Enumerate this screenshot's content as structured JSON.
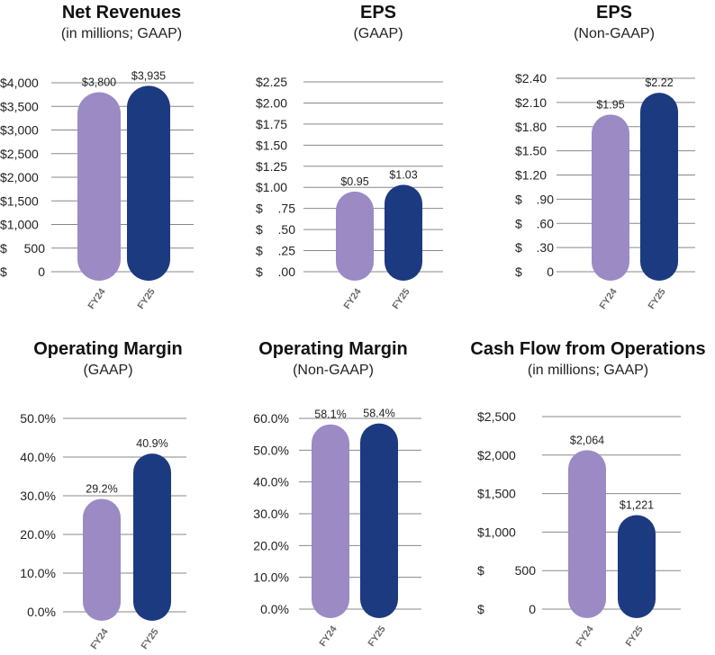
{
  "colors": {
    "fy24": "#9b8ac4",
    "fy25": "#1c3a80",
    "grid": "#888888"
  },
  "chart_data": [
    {
      "type": "bar",
      "title": "Net Revenues",
      "subtitle": "(in millions; GAAP)",
      "categories": [
        "FY24",
        "FY25"
      ],
      "values": [
        3800,
        3935
      ],
      "value_labels": [
        "$3,800",
        "$3,935"
      ],
      "ylim": [
        0,
        4000
      ],
      "ticks": [
        {
          "v": 0,
          "l1": "$",
          "l2": "0"
        },
        {
          "v": 500,
          "l1": "$",
          "l2": "500"
        },
        {
          "v": 1000,
          "l1": "$1,000",
          "l2": ""
        },
        {
          "v": 1500,
          "l1": "$1,500",
          "l2": ""
        },
        {
          "v": 2000,
          "l1": "$2,000",
          "l2": ""
        },
        {
          "v": 2500,
          "l1": "$2,500",
          "l2": ""
        },
        {
          "v": 3000,
          "l1": "$3,000",
          "l2": ""
        },
        {
          "v": 3500,
          "l1": "$3,500",
          "l2": ""
        },
        {
          "v": 4000,
          "l1": "$4,000",
          "l2": ""
        }
      ]
    },
    {
      "type": "bar",
      "title": "EPS",
      "subtitle": "(GAAP)",
      "categories": [
        "FY24",
        "FY25"
      ],
      "values": [
        0.95,
        1.03
      ],
      "value_labels": [
        "$0.95",
        "$1.03"
      ],
      "ylim": [
        0,
        2.25
      ],
      "ticks": [
        {
          "v": 0,
          "l1": "$",
          "l2": ".00"
        },
        {
          "v": 0.25,
          "l1": "$",
          "l2": ".25"
        },
        {
          "v": 0.5,
          "l1": "$",
          "l2": ".50"
        },
        {
          "v": 0.75,
          "l1": "$",
          "l2": ".75"
        },
        {
          "v": 1.0,
          "l1": "$1.00",
          "l2": ""
        },
        {
          "v": 1.25,
          "l1": "$1.25",
          "l2": ""
        },
        {
          "v": 1.5,
          "l1": "$1.50",
          "l2": ""
        },
        {
          "v": 1.75,
          "l1": "$1.75",
          "l2": ""
        },
        {
          "v": 2.0,
          "l1": "$2.00",
          "l2": ""
        },
        {
          "v": 2.25,
          "l1": "$2.25",
          "l2": ""
        }
      ]
    },
    {
      "type": "bar",
      "title": "EPS",
      "subtitle": "(Non-GAAP)",
      "categories": [
        "FY24",
        "FY25"
      ],
      "values": [
        1.95,
        2.22
      ],
      "value_labels": [
        "$1.95",
        "$2.22"
      ],
      "ylim": [
        0,
        2.4
      ],
      "ticks": [
        {
          "v": 0,
          "l1": "$",
          "l2": "0"
        },
        {
          "v": 0.3,
          "l1": "$",
          "l2": ".30"
        },
        {
          "v": 0.6,
          "l1": "$",
          "l2": ".60"
        },
        {
          "v": 0.9,
          "l1": "$",
          "l2": ".90"
        },
        {
          "v": 1.2,
          "l1": "$1.20",
          "l2": ""
        },
        {
          "v": 1.5,
          "l1": "$1.50",
          "l2": ""
        },
        {
          "v": 1.8,
          "l1": "$1.80",
          "l2": ""
        },
        {
          "v": 2.1,
          "l1": "$2.10",
          "l2": ""
        },
        {
          "v": 2.4,
          "l1": "$2.40",
          "l2": ""
        }
      ]
    },
    {
      "type": "bar",
      "title": "Operating Margin",
      "subtitle": "(GAAP)",
      "categories": [
        "FY24",
        "FY25"
      ],
      "values": [
        29.2,
        40.9
      ],
      "value_labels": [
        "29.2%",
        "40.9%"
      ],
      "ylim": [
        0,
        50
      ],
      "ticks": [
        {
          "v": 0,
          "l1": "0.0%",
          "l2": ""
        },
        {
          "v": 10,
          "l1": "10.0%",
          "l2": ""
        },
        {
          "v": 20,
          "l1": "20.0%",
          "l2": ""
        },
        {
          "v": 30,
          "l1": "30.0%",
          "l2": ""
        },
        {
          "v": 40,
          "l1": "40.0%",
          "l2": ""
        },
        {
          "v": 50,
          "l1": "50.0%",
          "l2": ""
        }
      ]
    },
    {
      "type": "bar",
      "title": "Operating Margin",
      "subtitle": "(Non-GAAP)",
      "categories": [
        "FY24",
        "FY25"
      ],
      "values": [
        58.1,
        58.4
      ],
      "value_labels": [
        "58.1%",
        "58.4%"
      ],
      "ylim": [
        0,
        60
      ],
      "ticks": [
        {
          "v": 0,
          "l1": "0.0%",
          "l2": ""
        },
        {
          "v": 10,
          "l1": "10.0%",
          "l2": ""
        },
        {
          "v": 20,
          "l1": "20.0%",
          "l2": ""
        },
        {
          "v": 30,
          "l1": "30.0%",
          "l2": ""
        },
        {
          "v": 40,
          "l1": "40.0%",
          "l2": ""
        },
        {
          "v": 50,
          "l1": "50.0%",
          "l2": ""
        },
        {
          "v": 60,
          "l1": "60.0%",
          "l2": ""
        }
      ]
    },
    {
      "type": "bar",
      "title": "Cash Flow from Operations",
      "subtitle": "(in millions; GAAP)",
      "categories": [
        "FY24",
        "FY25"
      ],
      "values": [
        2064,
        1221
      ],
      "value_labels": [
        "$2,064",
        "$1,221"
      ],
      "ylim": [
        0,
        2500
      ],
      "ticks": [
        {
          "v": 0,
          "l1": "$",
          "l2": "0"
        },
        {
          "v": 500,
          "l1": "$",
          "l2": "500"
        },
        {
          "v": 1000,
          "l1": "$1,000",
          "l2": ""
        },
        {
          "v": 1500,
          "l1": "$1,500",
          "l2": ""
        },
        {
          "v": 2000,
          "l1": "$2,000",
          "l2": ""
        },
        {
          "v": 2500,
          "l1": "$2,500",
          "l2": ""
        }
      ]
    }
  ]
}
